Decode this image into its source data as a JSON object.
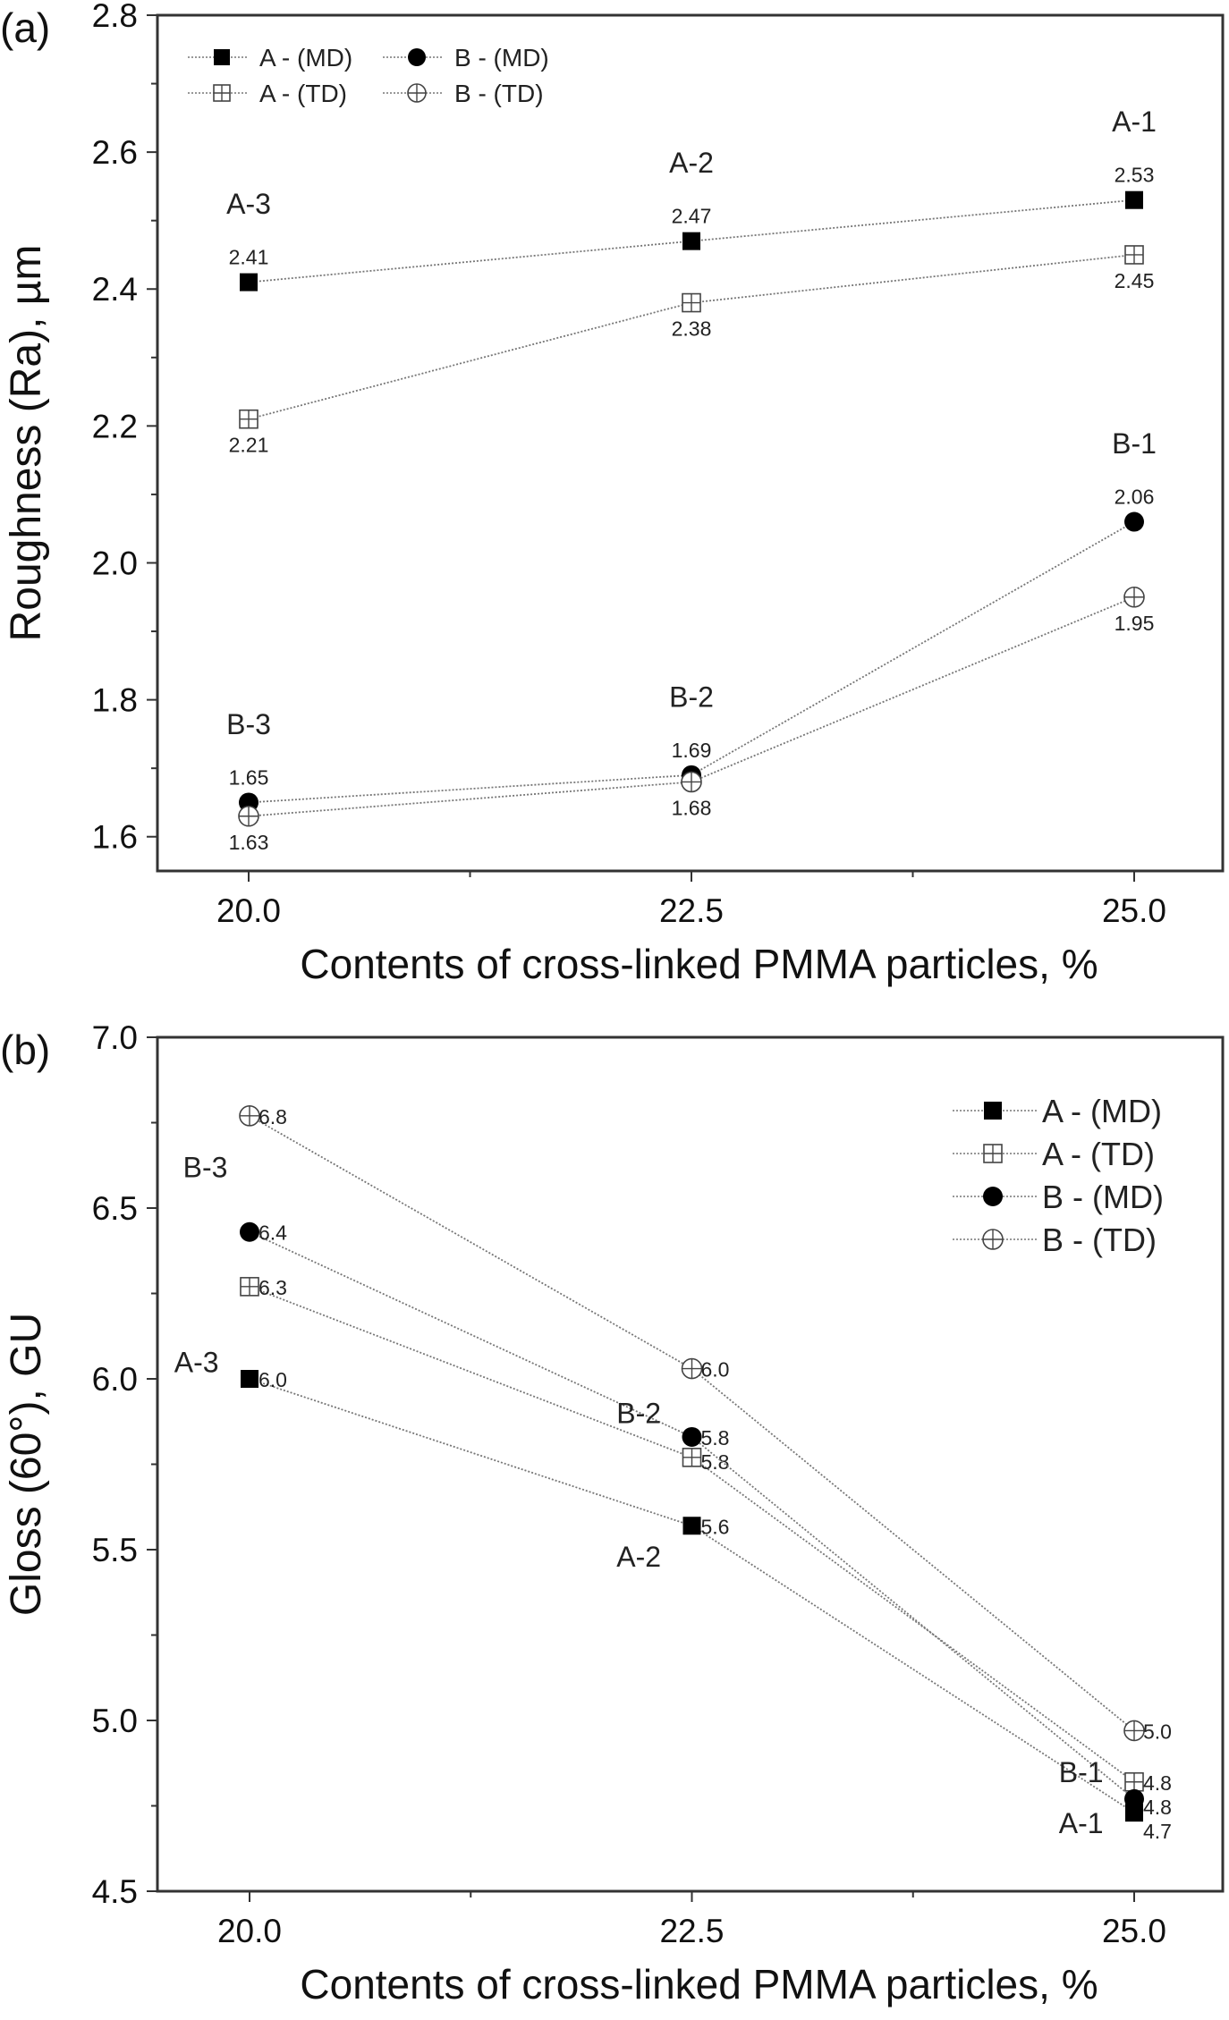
{
  "chart_data": [
    {
      "type": "line",
      "panel_label": "(a)",
      "xlabel": "Contents of cross-linked PMMA particles, %",
      "ylabel": "Roughness (Ra), µm",
      "x": [
        20.0,
        22.5,
        25.0
      ],
      "x_ticks": [
        "20.0",
        "22.5",
        "25.0"
      ],
      "y_ticks": [
        "1.6",
        "1.8",
        "2.0",
        "2.2",
        "2.4",
        "2.6",
        "2.8"
      ],
      "xlim": [
        19.5,
        25.5
      ],
      "ylim": [
        1.55,
        2.8
      ],
      "grid": false,
      "legend_placement": "top-left",
      "series": [
        {
          "name": "A - (MD)",
          "marker": "filled-square",
          "values": [
            2.41,
            2.47,
            2.53
          ],
          "labels": [
            "2.41",
            "2.47",
            "2.53"
          ],
          "label_pos": "above"
        },
        {
          "name": "A - (TD)",
          "marker": "open-square-cross",
          "values": [
            2.21,
            2.38,
            2.45
          ],
          "labels": [
            "2.21",
            "2.38",
            "2.45"
          ],
          "label_pos": "below"
        },
        {
          "name": "B - (MD)",
          "marker": "filled-circle",
          "values": [
            1.65,
            1.69,
            2.06
          ],
          "labels": [
            "1.65",
            "1.69",
            "2.06"
          ],
          "label_pos": "above"
        },
        {
          "name": "B - (TD)",
          "marker": "open-circle-cross",
          "values": [
            1.63,
            1.68,
            1.95
          ],
          "labels": [
            "1.63",
            "1.68",
            "1.95"
          ],
          "label_pos": "below"
        }
      ],
      "annotations": [
        {
          "text": "A-3",
          "x": 20.0,
          "y": 2.51
        },
        {
          "text": "A-2",
          "x": 22.5,
          "y": 2.57
        },
        {
          "text": "A-1",
          "x": 25.0,
          "y": 2.63
        },
        {
          "text": "B-3",
          "x": 20.0,
          "y": 1.75
        },
        {
          "text": "B-2",
          "x": 22.5,
          "y": 1.79
        },
        {
          "text": "B-1",
          "x": 25.0,
          "y": 2.16
        }
      ]
    },
    {
      "type": "line",
      "panel_label": "(b)",
      "xlabel": "Contents of cross-linked PMMA particles, %",
      "ylabel": "Gloss (60°), GU",
      "x": [
        20.0,
        22.5,
        25.0
      ],
      "x_ticks": [
        "20.0",
        "22.5",
        "25.0"
      ],
      "y_ticks": [
        "4.5",
        "5.0",
        "5.5",
        "6.0",
        "6.5",
        "7.0"
      ],
      "xlim": [
        19.5,
        25.5
      ],
      "ylim": [
        4.5,
        7.0
      ],
      "grid": false,
      "legend_placement": "top-right",
      "series": [
        {
          "name": "A - (MD)",
          "marker": "filled-square",
          "values": [
            6.0,
            5.57,
            4.73
          ],
          "labels": [
            "6.0",
            "5.6",
            "4.7"
          ]
        },
        {
          "name": "A - (TD)",
          "marker": "open-square-cross",
          "values": [
            6.27,
            5.77,
            4.82
          ],
          "labels": [
            "6.3",
            "5.8",
            "4.8"
          ]
        },
        {
          "name": "B - (MD)",
          "marker": "filled-circle",
          "values": [
            6.43,
            5.83,
            4.77
          ],
          "labels": [
            "6.4",
            "5.8",
            "4.8"
          ]
        },
        {
          "name": "B - (TD)",
          "marker": "open-circle-cross",
          "values": [
            6.77,
            6.03,
            4.97
          ],
          "labels": [
            "6.8",
            "6.0",
            "5.0"
          ]
        }
      ],
      "annotations": [
        {
          "text": "B-3",
          "x": 19.75,
          "y": 6.59
        },
        {
          "text": "A-3",
          "x": 19.7,
          "y": 6.02
        },
        {
          "text": "B-2",
          "x": 22.2,
          "y": 5.87
        },
        {
          "text": "A-2",
          "x": 22.2,
          "y": 5.45
        },
        {
          "text": "B-1",
          "x": 24.7,
          "y": 4.82
        },
        {
          "text": "A-1",
          "x": 24.7,
          "y": 4.67
        }
      ]
    }
  ]
}
